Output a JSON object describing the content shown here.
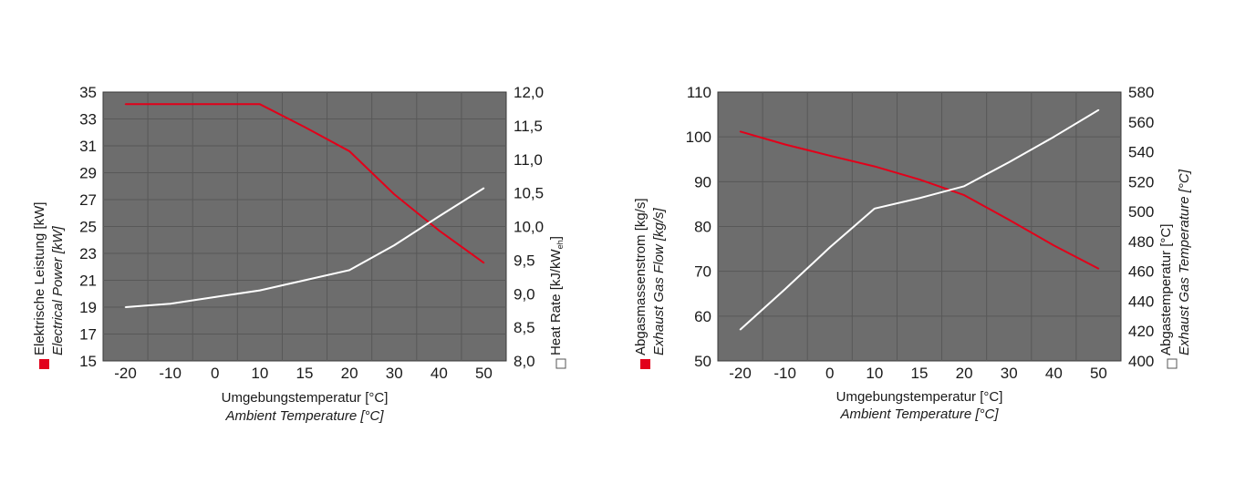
{
  "chart_data": [
    {
      "type": "line",
      "xlabel": "Umgebungstemperatur [°C]",
      "xlabel_en": "Ambient Temperature [°C]",
      "categories": [
        "-20",
        "-10",
        "0",
        "10",
        "15",
        "20",
        "30",
        "40",
        "50"
      ],
      "ylabel_left": "Elektrische Leistung [kW]",
      "ylabel_left_en": "Electrical Power [kW]",
      "ylabel_right": "Heat Rate [kJ/kWeh]",
      "ylabel_right_main": "Heat Rate [kJ/kW",
      "ylabel_right_sub": "eh",
      "ylabel_right_end": "]",
      "ylim_left": [
        15,
        35
      ],
      "ylim_right": [
        8.0,
        12.0
      ],
      "yticks_left": [
        "15",
        "17",
        "19",
        "21",
        "23",
        "25",
        "27",
        "29",
        "31",
        "33",
        "35"
      ],
      "yticks_right": [
        "8,0",
        "8,5",
        "9,0",
        "9,5",
        "10,0",
        "10,5",
        "11,0",
        "11,5",
        "12,0"
      ],
      "series": [
        {
          "axis": "left",
          "color": "#e2001a",
          "values": [
            34.1,
            34.1,
            34.1,
            34.1,
            32.4,
            30.6,
            27.4,
            24.7,
            22.3
          ]
        },
        {
          "axis": "right",
          "color": "#ffffff",
          "values": [
            8.8,
            8.85,
            8.95,
            9.05,
            9.2,
            9.35,
            9.72,
            10.15,
            10.57
          ]
        }
      ],
      "legend_left_color": "#e2001a",
      "legend_right_color": "#ffffff",
      "plot_bg": "#6d6d6d",
      "grid": true
    },
    {
      "type": "line",
      "xlabel": "Umgebungstemperatur [°C]",
      "xlabel_en": "Ambient Temperature [°C]",
      "categories": [
        "-20",
        "-10",
        "0",
        "10",
        "15",
        "20",
        "30",
        "40",
        "50"
      ],
      "ylabel_left": "Abgasmassenstrom [kg/s]",
      "ylabel_left_en": "Exhaust Gas Flow [kg/s]",
      "ylabel_right": "Abgastemperatur [°C]",
      "ylabel_right_en": "Exhaust Gas Temperature [°C]",
      "ylim_left": [
        50,
        110
      ],
      "ylim_right": [
        400,
        580
      ],
      "yticks_left": [
        "50",
        "60",
        "70",
        "80",
        "90",
        "100",
        "110"
      ],
      "yticks_right": [
        "400",
        "420",
        "440",
        "460",
        "480",
        "500",
        "520",
        "540",
        "560",
        "580"
      ],
      "series": [
        {
          "axis": "left",
          "color": "#e2001a",
          "values": [
            101.2,
            98.3,
            95.8,
            93.4,
            90.5,
            87.0,
            81.5,
            75.8,
            70.6
          ]
        },
        {
          "axis": "right",
          "color": "#ffffff",
          "values": [
            421,
            448,
            476,
            502,
            509,
            517,
            533,
            550,
            568
          ]
        }
      ],
      "legend_left_color": "#e2001a",
      "legend_right_color": "#ffffff",
      "plot_bg": "#6d6d6d",
      "grid": true
    }
  ]
}
